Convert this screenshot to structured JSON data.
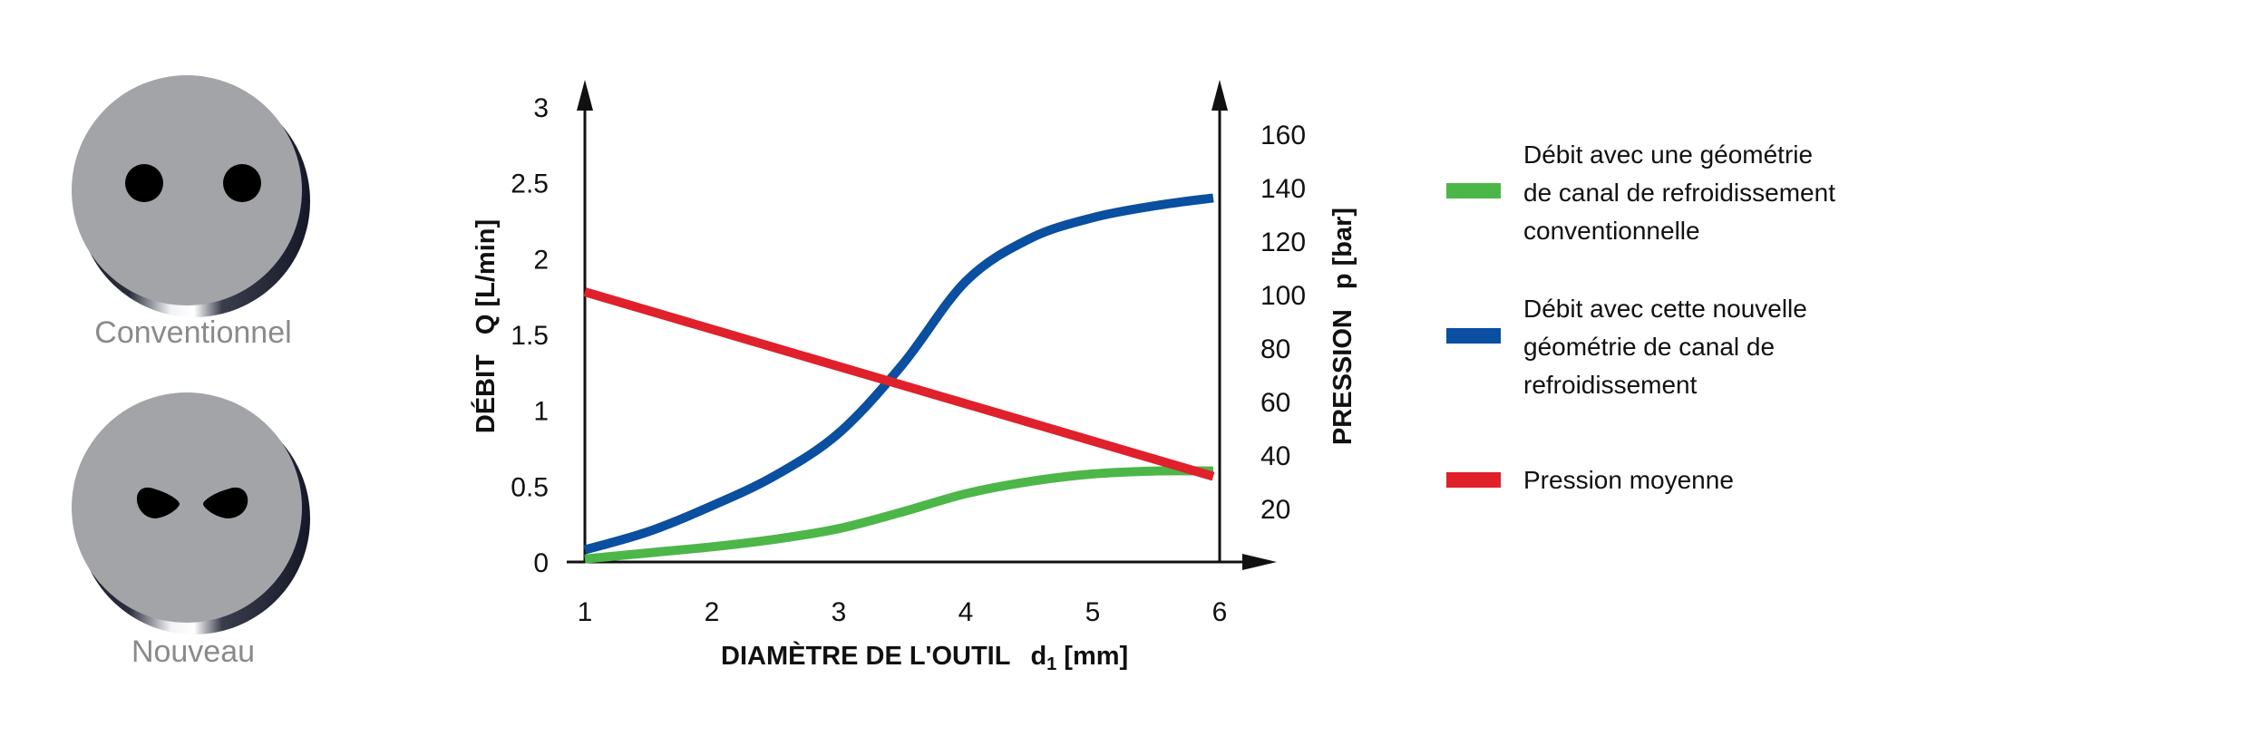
{
  "tool_sections": [
    {
      "label": "Conventionnel",
      "hole_shape": "round"
    },
    {
      "label": "Nouveau",
      "hole_shape": "drop"
    }
  ],
  "colors": {
    "green": "#4cb748",
    "blue": "#0a4fa0",
    "red": "#e0202a",
    "disc_face": "#a2a4a7",
    "axis": "#111111",
    "caption": "#8a8a8a"
  },
  "chart_data": {
    "type": "line",
    "xlabel_main": "DIAMÈTRE DE L'OUTIL",
    "xlabel_sym": "d",
    "xlabel_sub": "1",
    "xlabel_unit": "[mm]",
    "ylabel_left_name": "DÉBIT",
    "ylabel_left_unit": "Q [L/min]",
    "ylabel_right_name": "PRESSION",
    "ylabel_right_unit": "p [bar]",
    "x_ticks": [
      "1",
      "2",
      "3",
      "4",
      "5",
      "6"
    ],
    "xlim": [
      1,
      6
    ],
    "y_left_ticks": [
      "0",
      "0.5",
      "1",
      "1.5",
      "2",
      "2.5",
      "3"
    ],
    "ylim_left": [
      0,
      3
    ],
    "y_right_ticks": [
      "20",
      "40",
      "60",
      "80",
      "100",
      "120",
      "140",
      "160"
    ],
    "ylim_right": [
      0,
      160
    ],
    "series": [
      {
        "name": "Débit avec une géométrie de canal de refroidissement conventionnelle",
        "legend_lines": [
          "Débit avec une géométrie",
          "de canal de refroidissement",
          "conventionnelle"
        ],
        "color": "#4cb748",
        "axis": "left",
        "x": [
          1,
          1.5,
          2,
          2.5,
          3,
          3.5,
          4,
          4.5,
          5,
          5.5,
          5.95
        ],
        "y": [
          0.02,
          0.06,
          0.1,
          0.15,
          0.22,
          0.33,
          0.45,
          0.53,
          0.58,
          0.6,
          0.6
        ]
      },
      {
        "name": "Débit avec cette nouvelle géométrie de canal de refroidissement",
        "legend_lines": [
          "Débit avec cette nouvelle",
          "géométrie de canal de",
          "refroidissement"
        ],
        "color": "#0a4fa0",
        "axis": "left",
        "x": [
          1,
          1.5,
          2,
          2.5,
          3,
          3.5,
          4,
          4.5,
          5,
          5.5,
          5.95
        ],
        "y": [
          0.08,
          0.2,
          0.37,
          0.57,
          0.85,
          1.3,
          1.85,
          2.13,
          2.27,
          2.35,
          2.4
        ]
      },
      {
        "name": "Pression moyenne",
        "legend_lines": [
          "Pression moyenne"
        ],
        "color": "#e0202a",
        "axis": "right",
        "x": [
          1,
          5.95
        ],
        "y": [
          101,
          32
        ]
      }
    ]
  }
}
